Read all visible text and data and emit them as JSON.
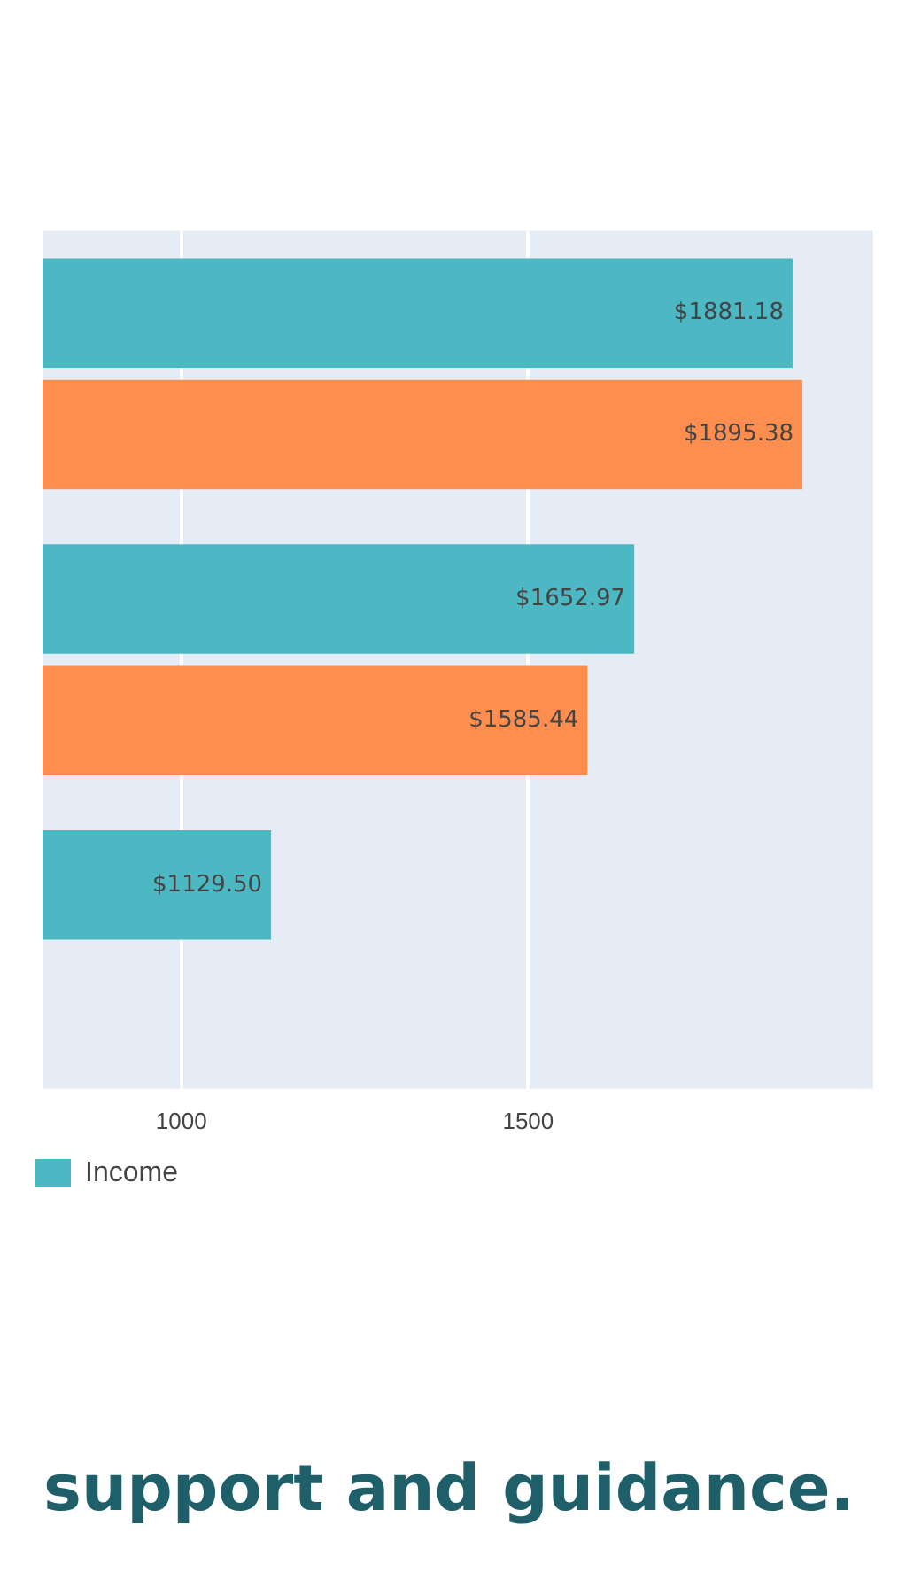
{
  "chart_data": {
    "type": "bar",
    "orientation": "horizontal",
    "categories": [
      null,
      null,
      null
    ],
    "series": [
      {
        "name": "Income",
        "color": "#4bb8c4",
        "values": [
          1881.18,
          1652.97,
          1129.5
        ],
        "value_labels": [
          "$1881.18",
          "$1652.97",
          "$1129.50"
        ]
      },
      {
        "color": "#fd8e4f",
        "values": [
          1895.38,
          1585.44,
          null
        ],
        "value_labels": [
          "$1895.38",
          "$1585.44",
          null
        ]
      }
    ],
    "xlim": [
      800,
      2000
    ],
    "xticks": [
      1000,
      1500,
      {
        "value": 2000,
        "label": null
      }
    ],
    "grid": "x",
    "legend": "bottom left",
    "annotations": [
      "support and guidance."
    ]
  }
}
